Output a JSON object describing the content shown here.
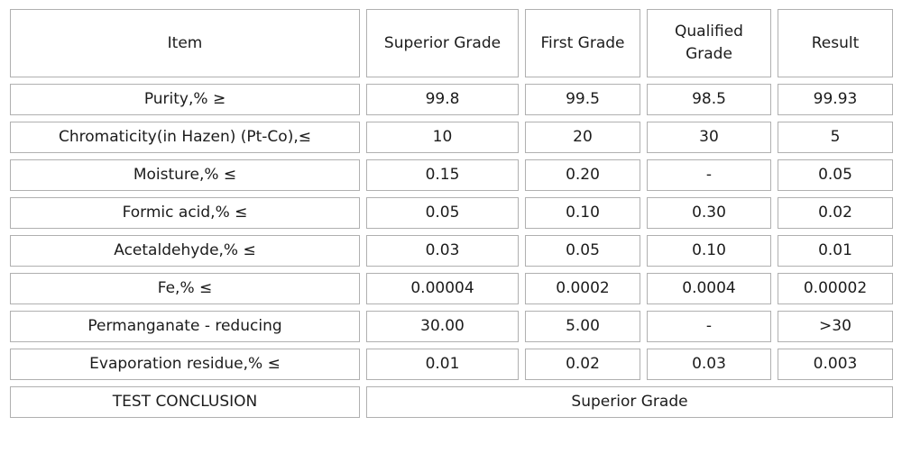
{
  "table": {
    "columns": [
      "Item",
      "Superior Grade",
      "First Grade",
      "Qualified Grade",
      "Result"
    ],
    "rows": [
      {
        "item": "Purity,% ≥",
        "values": [
          "99.8",
          "99.5",
          "98.5",
          "99.93"
        ]
      },
      {
        "item": "Chromaticity(in Hazen) (Pt-Co),≤",
        "values": [
          "10",
          "20",
          "30",
          "5"
        ]
      },
      {
        "item": "Moisture,% ≤",
        "values": [
          "0.15",
          "0.20",
          "-",
          "0.05"
        ]
      },
      {
        "item": "Formic acid,% ≤",
        "values": [
          "0.05",
          "0.10",
          "0.30",
          "0.02"
        ]
      },
      {
        "item": "Acetaldehyde,% ≤",
        "values": [
          "0.03",
          "0.05",
          "0.10",
          "0.01"
        ]
      },
      {
        "item": "Fe,% ≤",
        "values": [
          "0.00004",
          "0.0002",
          "0.0004",
          "0.00002"
        ]
      },
      {
        "item": "Permanganate - reducing",
        "values": [
          "30.00",
          "5.00",
          "-",
          ">30"
        ]
      },
      {
        "item": "Evaporation residue,% ≤",
        "values": [
          "0.01",
          "0.02",
          "0.03",
          "0.003"
        ]
      }
    ],
    "conclusion": {
      "label": "TEST CONCLUSION",
      "value": "Superior Grade"
    }
  },
  "colors": {
    "border": "#b0b0b0",
    "text": "#1c1c1c",
    "background": "#ffffff"
  }
}
